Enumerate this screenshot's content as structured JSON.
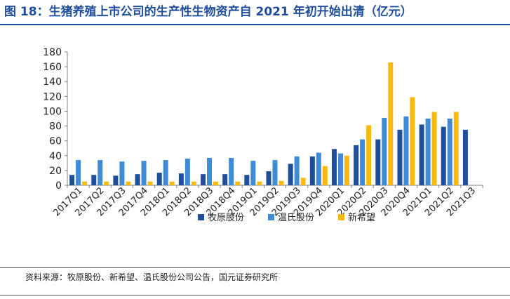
{
  "title": "图 18：生猪养殖上市公司的生产性生物资产自 2021 年初开始出清（亿元）",
  "source": "资料来源：牧原股份、新希望、温氏股份公司公告，国元证券研究所",
  "chart_data": {
    "type": "bar",
    "categories": [
      "2017Q1",
      "2017Q2",
      "2017Q3",
      "2017Q4",
      "2018Q1",
      "2018Q2",
      "2018Q3",
      "2018Q4",
      "2019Q1",
      "2019Q2",
      "2019Q3",
      "2019Q4",
      "2020Q1",
      "2020Q2",
      "2020Q3",
      "2020Q4",
      "2021Q1",
      "2021Q2",
      "2021Q3"
    ],
    "ylim": [
      0,
      180
    ],
    "yticks": [
      0,
      20,
      40,
      60,
      80,
      100,
      120,
      140,
      160,
      180
    ],
    "legend_position": "bottom",
    "grid": false,
    "series": [
      {
        "name": "牧原股份",
        "color": "#1f4e9a",
        "values": [
          14,
          14,
          13,
          15,
          17,
          16,
          15,
          15,
          14,
          19,
          29,
          39,
          49,
          54,
          62,
          75,
          82,
          79,
          75
        ]
      },
      {
        "name": "温氏股份",
        "color": "#3f8bd6",
        "values": [
          34,
          34,
          32,
          33,
          34,
          36,
          37,
          37,
          33,
          34,
          39,
          44,
          43,
          62,
          91,
          93,
          90,
          90,
          null
        ]
      },
      {
        "name": "新希望",
        "color": "#f8b911",
        "values": [
          5,
          5,
          5,
          5,
          5,
          5,
          5,
          5,
          5,
          6,
          10,
          26,
          40,
          81,
          166,
          119,
          99,
          99,
          null
        ]
      }
    ]
  }
}
